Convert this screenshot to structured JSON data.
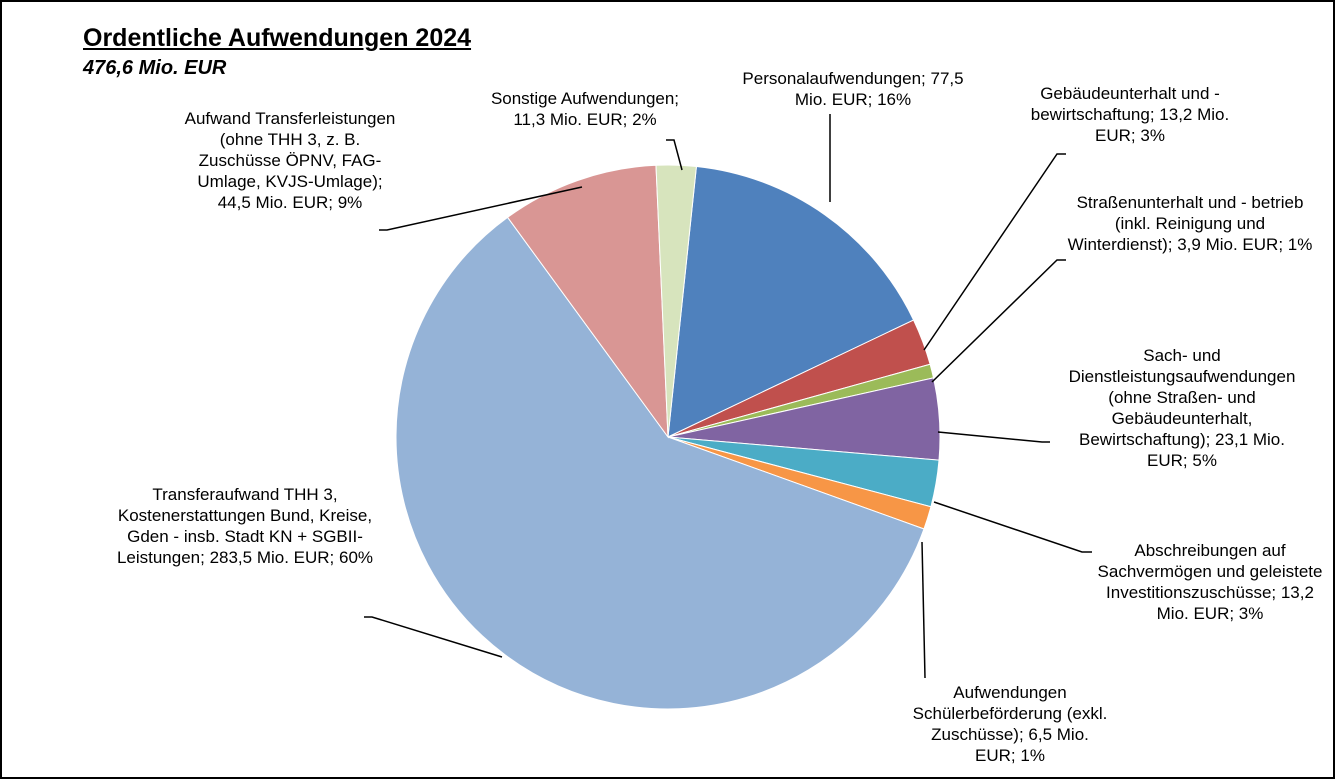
{
  "chart_data": {
    "type": "pie",
    "title": "Ordentliche Aufwendungen 2024",
    "subtitle": "476,6 Mio. EUR",
    "categories": [
      "Personalaufwendungen; 77,5 Mio. EUR; 16%",
      "Gebäudeunterhalt und - bewirtschaftung; 13,2 Mio. EUR; 3%",
      "Straßenunterhalt und - betrieb (inkl. Reinigung und Winterdienst); 3,9 Mio. EUR; 1%",
      "Sach- und Dienstleistungsaufwendungen (ohne Straßen- und Gebäudeunterhalt, Bewirtschaftung); 23,1 Mio. EUR; 5%",
      "Abschreibungen auf Sachvermögen und geleistete Investitionszuschüsse; 13,2 Mio. EUR; 3%",
      "Aufwendungen Schülerbeförderung (exkl. Zuschüsse); 6,5 Mio. EUR; 1%",
      "Transferaufwand THH 3, Kostenerstattungen Bund, Kreise, Gden - insb. Stadt KN + SGBII-Leistungen; 283,5 Mio. EUR; 60%",
      "Aufwand Transferleistungen (ohne THH 3, z. B. Zuschüsse ÖPNV, FAG-Umlage, KVJS-Umlage); 44,5 Mio. EUR; 9%",
      "Sonstige Aufwendungen; 11,3 Mio. EUR; 2%"
    ],
    "values": [
      77.5,
      13.2,
      3.9,
      23.1,
      13.2,
      6.5,
      283.5,
      44.5,
      11.3
    ],
    "colors": [
      "#4f81bd",
      "#c0504d",
      "#9bbb59",
      "#8064a2",
      "#4bacc6",
      "#f79646",
      "#95b3d7",
      "#d99694",
      "#d7e4bd"
    ]
  }
}
